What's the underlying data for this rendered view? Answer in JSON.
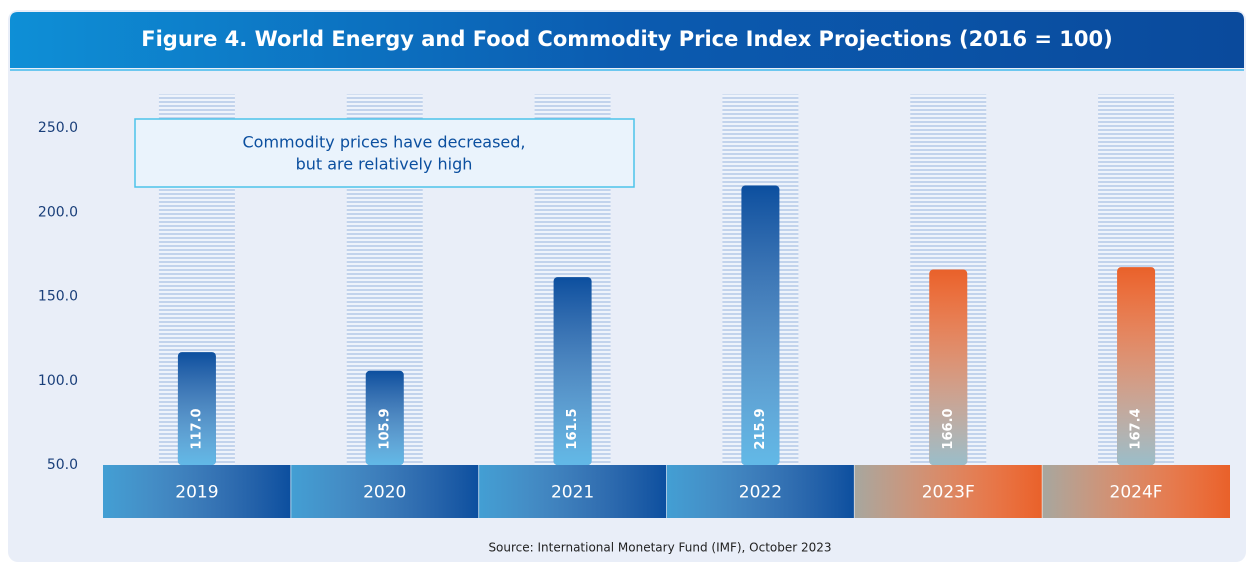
{
  "chart_data": {
    "type": "bar",
    "title": "Figure 4. World Energy and Food Commodity Price Index Projections (2016 = 100)",
    "annotation": [
      "Commodity prices have decreased,",
      "but are relatively high"
    ],
    "source": "Source: International Monetary Fund (IMF), October 2023",
    "categories": [
      "2019",
      "2020",
      "2021",
      "2022",
      "2023F",
      "2024F"
    ],
    "values": [
      117.0,
      105.9,
      161.5,
      215.9,
      166.0,
      167.4
    ],
    "value_labels": [
      "117.0",
      "105.9",
      "161.5",
      "215.9",
      "166.0",
      "167.4"
    ],
    "colors": [
      "#0c4f9f",
      "#0c4f9f",
      "#0c4f9f",
      "#0c4f9f",
      "#e9612a",
      "#e9612a"
    ],
    "ylim": [
      50,
      270
    ],
    "yticks": [
      {
        "value": 50,
        "label": "50.0"
      },
      {
        "value": 100,
        "label": "100.0"
      },
      {
        "value": 150,
        "label": "150.0"
      },
      {
        "value": 200,
        "label": "200.0"
      },
      {
        "value": 250,
        "label": "250.0"
      }
    ]
  }
}
